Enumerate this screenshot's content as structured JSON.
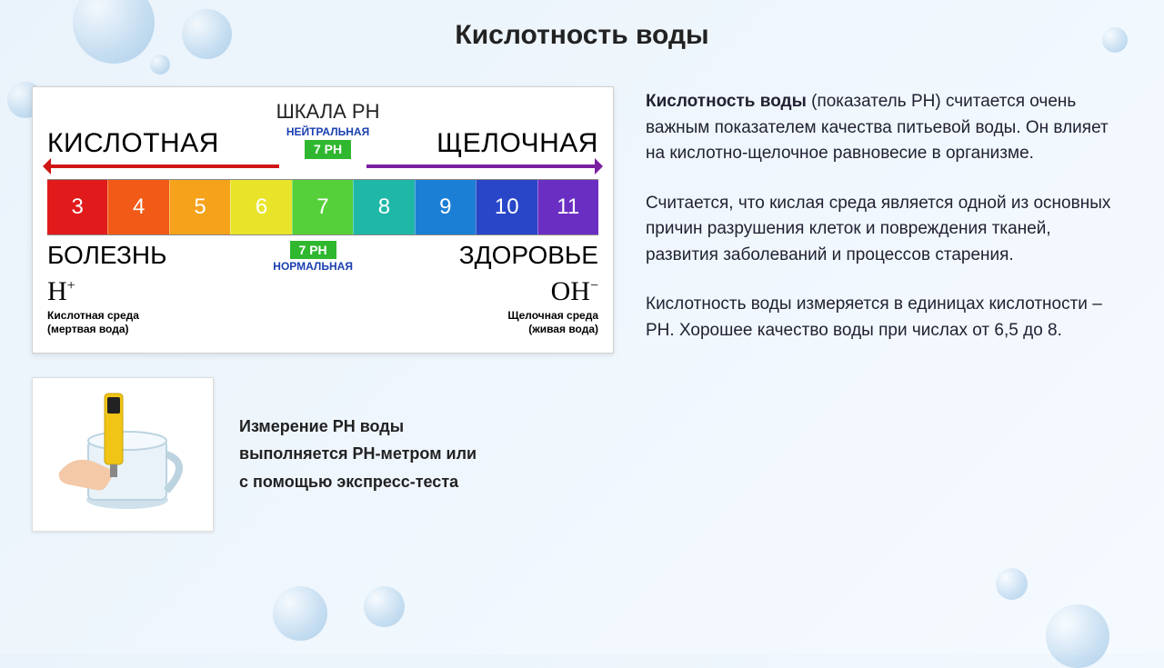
{
  "title": "Кислотность воды",
  "scale": {
    "top_title": "ШКАЛА РН",
    "acid_label": "КИСЛОТНАЯ",
    "alk_label": "ЩЕЛОЧНАЯ",
    "neutral_label": "НЕЙТРАЛЬНАЯ",
    "badge_top": "7 PH",
    "disease": "БОЛЕЗНЬ",
    "health": "ЗДОРОВЬЕ",
    "badge_bot": "7 PH",
    "normal_label": "НОРМАЛЬНАЯ",
    "ion_h": "H",
    "ion_h_sup": "+",
    "ion_oh": "OH",
    "ion_oh_sup": "−",
    "env_acid_l1": "Кислотная среда",
    "env_acid_l2": "(мертвая вода)",
    "env_alk_l1": "Щелочная среда",
    "env_alk_l2": "(живая вода)",
    "values": [
      "3",
      "4",
      "5",
      "6",
      "7",
      "8",
      "9",
      "10",
      "11"
    ],
    "colors": [
      "#e11b1b",
      "#f25a18",
      "#f6a21a",
      "#e9e42a",
      "#55d03a",
      "#1fb7a6",
      "#1b7fd6",
      "#2946c9",
      "#6a2fc2"
    ],
    "arrow_left_color": "#d01515",
    "arrow_right_color": "#7a1fa0",
    "badge_bg": "#2fb82f",
    "neutral_text_color": "#1a3fb0"
  },
  "meter": {
    "line1": "Измерение РН воды",
    "line2": "выполняется РН-метром или",
    "line3": "с помощью экспресс-теста",
    "pen_color": "#f0c515",
    "pen_tip": "#333333",
    "glass_color": "#d7e6ef"
  },
  "text": {
    "term": "Кислотность воды",
    "p1_rest": " (показатель РН) считается очень важным показателем качества питьевой воды. Он влияет на кислотно-щелочное равновесие в организме.",
    "p2": "Считается, что кислая среда является одной из основных причин разрушения клеток и повреждения тканей, развития заболеваний и процессов старения.",
    "p3": "Кислотность воды измеряется в единицах кислотности – РН. Хорошее качество воды при числах  от 6,5 до 8."
  }
}
